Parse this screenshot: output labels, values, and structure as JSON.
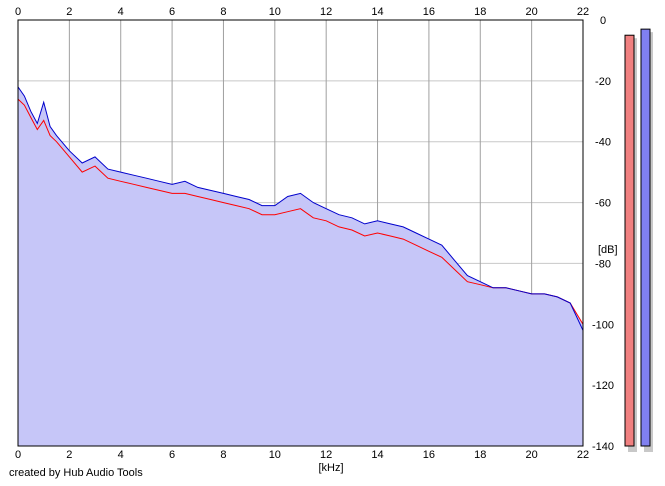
{
  "chart_data": {
    "type": "area",
    "xlabel": "[kHz]",
    "ylabel": "[dB]",
    "xlim": [
      0,
      22
    ],
    "ylim": [
      -140,
      0
    ],
    "x_ticks": [
      0,
      2,
      4,
      6,
      8,
      10,
      12,
      14,
      16,
      18,
      20,
      22
    ],
    "y_ticks": [
      0,
      -20,
      -40,
      -60,
      -80,
      -100,
      -120,
      -140
    ],
    "grid": true,
    "series": [
      {
        "color": "#ff0000",
        "x": [
          0,
          0.25,
          0.5,
          0.75,
          1,
          1.25,
          1.5,
          2,
          2.5,
          3,
          3.5,
          4,
          4.5,
          5,
          5.5,
          6,
          6.5,
          7,
          7.5,
          8,
          8.5,
          9,
          9.5,
          10,
          10.5,
          11,
          11.5,
          12,
          12.5,
          13,
          13.5,
          14,
          14.5,
          15,
          15.5,
          16,
          16.5,
          17,
          17.5,
          18,
          18.5,
          19,
          19.5,
          20,
          20.5,
          21,
          21.5,
          22
        ],
        "values": [
          -26,
          -28,
          -32,
          -36,
          -33,
          -38,
          -40,
          -45,
          -50,
          -48,
          -52,
          -53,
          -54,
          -55,
          -56,
          -57,
          -57,
          -58,
          -59,
          -60,
          -61,
          -62,
          -64,
          -64,
          -63,
          -62,
          -65,
          -66,
          -68,
          -69,
          -71,
          -70,
          -71,
          -72,
          -74,
          -76,
          -78,
          -82,
          -86,
          -87,
          -88,
          -88,
          -89,
          -90,
          -90,
          -91,
          -93,
          -100
        ]
      },
      {
        "color": "#0000cc",
        "x": [
          0,
          0.25,
          0.5,
          0.75,
          1,
          1.25,
          1.5,
          2,
          2.5,
          3,
          3.5,
          4,
          4.5,
          5,
          5.5,
          6,
          6.5,
          7,
          7.5,
          8,
          8.5,
          9,
          9.5,
          10,
          10.5,
          11,
          11.5,
          12,
          12.5,
          13,
          13.5,
          14,
          14.5,
          15,
          15.5,
          16,
          16.5,
          17,
          17.5,
          18,
          18.5,
          19,
          19.5,
          20,
          20.5,
          21,
          21.5,
          22
        ],
        "values": [
          -22,
          -25,
          -30,
          -34,
          -27,
          -35,
          -38,
          -43,
          -47,
          -45,
          -49,
          -50,
          -51,
          -52,
          -53,
          -54,
          -53,
          -55,
          -56,
          -57,
          -58,
          -59,
          -61,
          -61,
          -58,
          -57,
          -60,
          -62,
          -64,
          -65,
          -67,
          -66,
          -67,
          -68,
          -70,
          -72,
          -74,
          -79,
          -84,
          -86,
          -88,
          -88,
          -89,
          -90,
          -90,
          -91,
          -93,
          -102
        ]
      }
    ],
    "level_meters": [
      {
        "color": "#f08080",
        "top_db": -5
      },
      {
        "color": "#8080f0",
        "top_db": -3
      }
    ]
  },
  "footer": {
    "credit": "created by Hub Audio Tools"
  }
}
